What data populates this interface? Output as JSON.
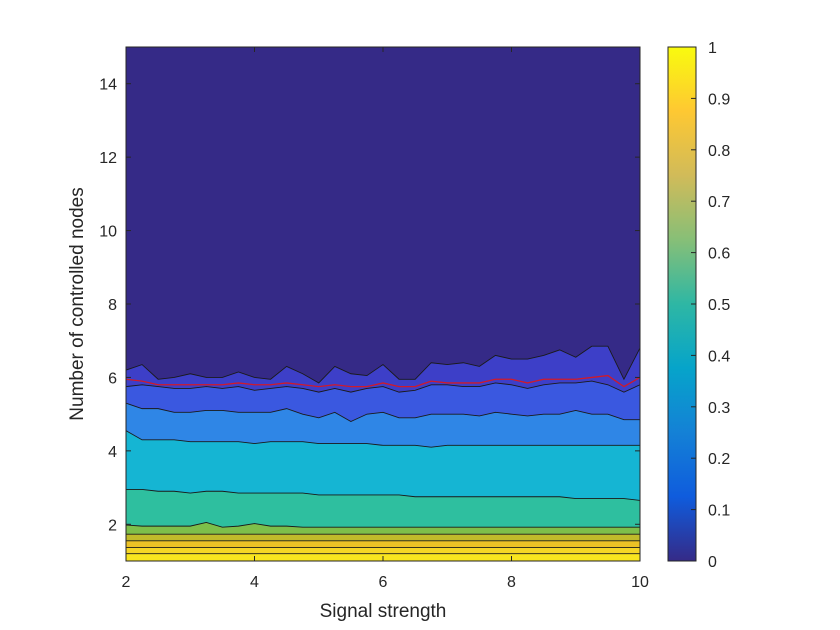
{
  "chart_data": {
    "type": "contour",
    "title": "",
    "xlabel": "Signal strength",
    "ylabel": "Number of controlled nodes",
    "xlim": [
      2,
      10
    ],
    "ylim": [
      1,
      15
    ],
    "x_ticks": [
      "2",
      "4",
      "6",
      "8",
      "10"
    ],
    "y_ticks": [
      "2",
      "4",
      "6",
      "8",
      "10",
      "12",
      "14"
    ],
    "colorbar": {
      "range": [
        0,
        1
      ],
      "ticks": [
        "0",
        "0.1",
        "0.2",
        "0.3",
        "0.4",
        "0.5",
        "0.6",
        "0.7",
        "0.8",
        "0.9",
        "1"
      ],
      "colormap": "parula"
    },
    "x": [
      2.0,
      2.25,
      2.5,
      2.75,
      3.0,
      3.25,
      3.5,
      3.75,
      4.0,
      4.25,
      4.5,
      4.75,
      5.0,
      5.25,
      5.5,
      5.75,
      6.0,
      6.25,
      6.5,
      6.75,
      7.0,
      7.25,
      7.5,
      7.75,
      8.0,
      8.25,
      8.5,
      8.75,
      9.0,
      9.25,
      9.5,
      9.75,
      10.0
    ],
    "levels": [
      {
        "level": 0.0,
        "color": "#352a87",
        "y": [
          6.2,
          6.35,
          5.95,
          6.0,
          6.1,
          6.0,
          6.0,
          6.15,
          6.0,
          5.95,
          6.3,
          6.1,
          5.85,
          6.3,
          6.1,
          6.05,
          6.35,
          5.95,
          5.95,
          6.4,
          6.35,
          6.4,
          6.3,
          6.6,
          6.5,
          6.5,
          6.6,
          6.75,
          6.55,
          6.85,
          6.85,
          5.95,
          6.8
        ]
      },
      {
        "level": 0.05,
        "color": "#3d3fc8",
        "y": [
          5.75,
          5.8,
          5.75,
          5.7,
          5.7,
          5.75,
          5.7,
          5.75,
          5.65,
          5.7,
          5.75,
          5.7,
          5.6,
          5.7,
          5.6,
          5.7,
          5.75,
          5.6,
          5.65,
          5.8,
          5.8,
          5.75,
          5.75,
          5.85,
          5.8,
          5.7,
          5.8,
          5.85,
          5.85,
          5.9,
          5.8,
          5.6,
          5.8
        ]
      },
      {
        "level": 0.1,
        "color": "#3a58e0",
        "y": [
          5.3,
          5.15,
          5.15,
          5.05,
          5.05,
          5.1,
          5.1,
          5.05,
          5.05,
          5.05,
          5.15,
          5.0,
          4.9,
          5.05,
          4.8,
          5.0,
          5.05,
          4.9,
          4.9,
          5.0,
          5.0,
          5.0,
          4.95,
          5.05,
          5.0,
          4.95,
          5.0,
          5.0,
          5.1,
          5.0,
          5.0,
          4.85,
          4.85
        ]
      },
      {
        "level": 0.2,
        "color": "#2f86e6",
        "y": [
          4.55,
          4.3,
          4.3,
          4.3,
          4.25,
          4.25,
          4.25,
          4.25,
          4.2,
          4.25,
          4.25,
          4.25,
          4.2,
          4.2,
          4.2,
          4.2,
          4.15,
          4.15,
          4.15,
          4.1,
          4.15,
          4.15,
          4.15,
          4.15,
          4.15,
          4.15,
          4.15,
          4.15,
          4.15,
          4.15,
          4.15,
          4.15,
          4.15
        ]
      },
      {
        "level": 0.3,
        "color": "#15b5d3",
        "y": [
          2.95,
          2.95,
          2.9,
          2.9,
          2.85,
          2.9,
          2.9,
          2.85,
          2.85,
          2.85,
          2.85,
          2.85,
          2.8,
          2.8,
          2.8,
          2.8,
          2.8,
          2.8,
          2.75,
          2.75,
          2.75,
          2.75,
          2.75,
          2.75,
          2.75,
          2.75,
          2.75,
          2.75,
          2.7,
          2.7,
          2.7,
          2.7,
          2.65
        ]
      },
      {
        "level": 0.4,
        "color": "#2ebf9f",
        "y": [
          1.98,
          1.95,
          1.95,
          1.95,
          1.95,
          2.05,
          1.92,
          1.95,
          2.02,
          1.95,
          1.95,
          1.92,
          1.92,
          1.92,
          1.92,
          1.92,
          1.92,
          1.92,
          1.92,
          1.92,
          1.92,
          1.92,
          1.92,
          1.92,
          1.92,
          1.92,
          1.92,
          1.92,
          1.92,
          1.92,
          1.92,
          1.92,
          1.92
        ]
      },
      {
        "level": 0.5,
        "color": "#7dbf4a",
        "y": [
          1.73,
          1.73,
          1.73,
          1.73,
          1.73,
          1.73,
          1.73,
          1.73,
          1.73,
          1.73,
          1.73,
          1.73,
          1.73,
          1.73,
          1.73,
          1.73,
          1.73,
          1.73,
          1.73,
          1.73,
          1.73,
          1.73,
          1.73,
          1.73,
          1.73,
          1.73,
          1.73,
          1.73,
          1.73,
          1.73,
          1.73,
          1.73,
          1.73
        ]
      },
      {
        "level": 0.6,
        "color": "#c0bb2a",
        "y": [
          1.55,
          1.55,
          1.55,
          1.55,
          1.55,
          1.55,
          1.55,
          1.55,
          1.55,
          1.55,
          1.55,
          1.55,
          1.55,
          1.55,
          1.55,
          1.55,
          1.55,
          1.55,
          1.55,
          1.55,
          1.55,
          1.55,
          1.55,
          1.55,
          1.55,
          1.55,
          1.55,
          1.55,
          1.55,
          1.55,
          1.55,
          1.55,
          1.55
        ]
      },
      {
        "level": 0.7,
        "color": "#ecc226",
        "y": [
          1.37,
          1.37,
          1.37,
          1.37,
          1.37,
          1.37,
          1.37,
          1.37,
          1.37,
          1.37,
          1.37,
          1.37,
          1.37,
          1.37,
          1.37,
          1.37,
          1.37,
          1.37,
          1.37,
          1.37,
          1.37,
          1.37,
          1.37,
          1.37,
          1.37,
          1.37,
          1.37,
          1.37,
          1.37,
          1.37,
          1.37,
          1.37,
          1.37
        ]
      },
      {
        "level": 0.8,
        "color": "#f6d626",
        "y": [
          1.2,
          1.2,
          1.2,
          1.2,
          1.2,
          1.2,
          1.2,
          1.2,
          1.2,
          1.2,
          1.2,
          1.2,
          1.2,
          1.2,
          1.2,
          1.2,
          1.2,
          1.2,
          1.2,
          1.2,
          1.2,
          1.2,
          1.2,
          1.2,
          1.2,
          1.2,
          1.2,
          1.2,
          1.2,
          1.2,
          1.2,
          1.2,
          1.2
        ]
      }
    ],
    "highlight_line": {
      "color": "#d01a2a",
      "y": [
        5.95,
        5.9,
        5.8,
        5.8,
        5.8,
        5.8,
        5.8,
        5.85,
        5.8,
        5.8,
        5.85,
        5.8,
        5.75,
        5.8,
        5.75,
        5.75,
        5.85,
        5.75,
        5.75,
        5.9,
        5.85,
        5.85,
        5.85,
        5.95,
        5.95,
        5.85,
        5.95,
        5.95,
        5.95,
        6.0,
        6.05,
        5.75,
        6.0
      ]
    },
    "band_colors": [
      "#352a87",
      "#3d3fc8",
      "#3a58e0",
      "#2f86e6",
      "#15b5d3",
      "#2ebf9f",
      "#7dbf4a",
      "#c0bb2a",
      "#ecc226",
      "#f6d626",
      "#f9e51f"
    ],
    "colormap_stops": [
      "#352a87",
      "#0f5cdd",
      "#1481d6",
      "#06a4ca",
      "#2eb7a4",
      "#87bf77",
      "#d1bb59",
      "#fec832",
      "#f9fb0e"
    ]
  }
}
